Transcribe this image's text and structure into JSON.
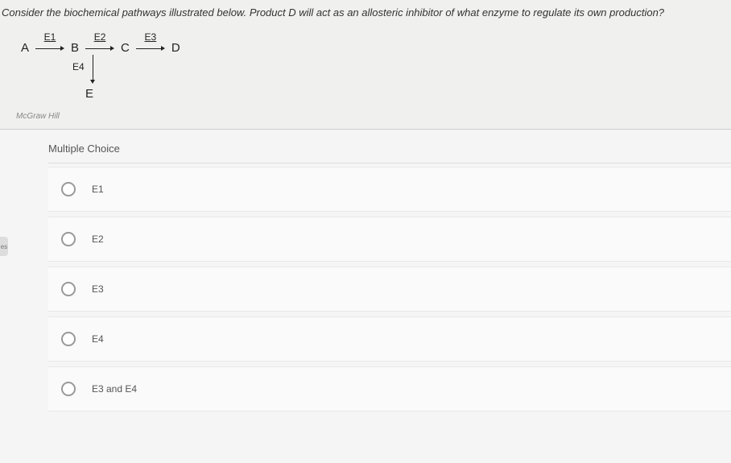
{
  "question": {
    "text": "Consider the biochemical pathways illustrated below. Product D will act as an allosteric inhibitor of what enzyme to regulate its own production?",
    "text_color": "#333333",
    "font_size": 13
  },
  "pathway": {
    "nodes": {
      "a": "A",
      "b": "B",
      "c": "C",
      "d": "D",
      "e": "E"
    },
    "enzymes": {
      "e1": "E1",
      "e2": "E2",
      "e3": "E3",
      "e4": "E4"
    },
    "node_color": "#222222",
    "node_font_size": 15,
    "enzyme_font_size": 12
  },
  "attribution": "McGraw Hill",
  "section_heading": "Multiple Choice",
  "options": [
    {
      "label": "E1"
    },
    {
      "label": "E2"
    },
    {
      "label": "E3"
    },
    {
      "label": "E4"
    },
    {
      "label": "E3 and E4"
    }
  ],
  "colors": {
    "page_bg": "#f5f5f5",
    "question_bg": "#f0f0ee",
    "option_bg": "#fafafa",
    "border": "#dddddd",
    "radio_border": "#999999",
    "text_muted": "#555555"
  },
  "side_tab": "es"
}
